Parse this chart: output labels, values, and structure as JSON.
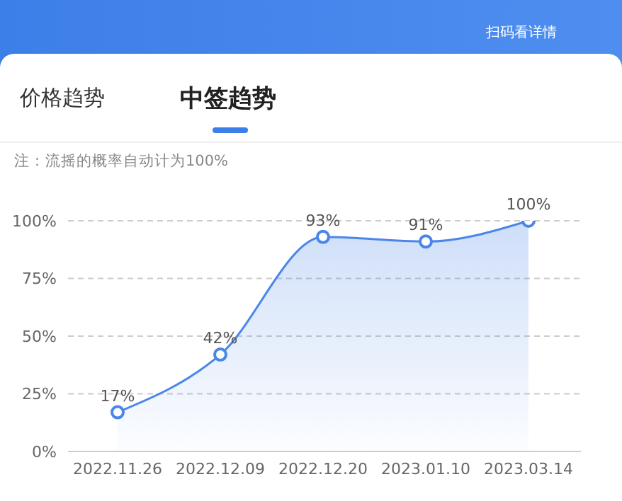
{
  "chart_data": {
    "type": "area",
    "title": "中签趋势",
    "subtitle": "价格趋势",
    "annotations": [
      "扫码看详情",
      "注：流摇的概率自动计为100%"
    ],
    "categories": [
      "2022.11.26",
      "2022.12.09",
      "2022.12.20",
      "2023.01.10",
      "2023.03.14"
    ],
    "series": [
      {
        "color": "#4a86e8",
        "values": [
          17,
          42,
          93,
          91,
          100
        ],
        "value_labels": [
          "17%",
          "42%",
          "93%",
          "91%",
          "100%"
        ]
      }
    ],
    "ylim": [
      0,
      100
    ],
    "yticks": [
      {
        "value": 0,
        "label": "0%"
      },
      {
        "value": 25,
        "label": "25%"
      },
      {
        "value": 50,
        "label": "50%"
      },
      {
        "value": 75,
        "label": "75%"
      },
      {
        "value": 100,
        "label": "100%"
      }
    ],
    "grid": "y",
    "marker": "circle",
    "line_style": "solid"
  }
}
